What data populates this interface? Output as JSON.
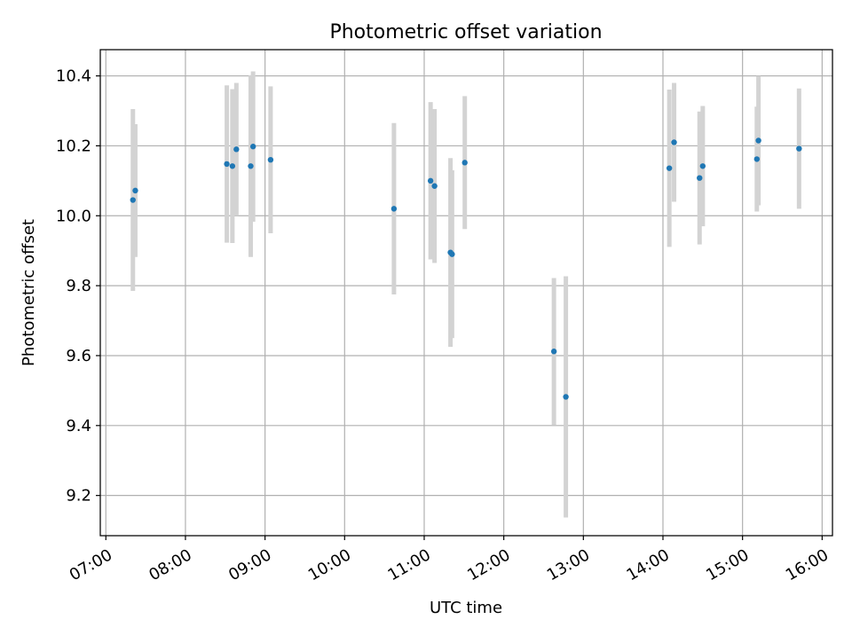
{
  "chart_data": {
    "type": "scatter",
    "title": "Photometric offset variation",
    "xlabel": "UTC time",
    "ylabel": "Photometric offset",
    "grid": true,
    "x_unit": "hours UTC",
    "xlim": [
      6.93,
      16.13
    ],
    "ylim": [
      9.085,
      10.475
    ],
    "x_ticks": [
      {
        "value": 7,
        "label": "07:00"
      },
      {
        "value": 8,
        "label": "08:00"
      },
      {
        "value": 9,
        "label": "09:00"
      },
      {
        "value": 10,
        "label": "10:00"
      },
      {
        "value": 11,
        "label": "11:00"
      },
      {
        "value": 12,
        "label": "12:00"
      },
      {
        "value": 13,
        "label": "13:00"
      },
      {
        "value": 14,
        "label": "14:00"
      },
      {
        "value": 15,
        "label": "15:00"
      },
      {
        "value": 16,
        "label": "16:00"
      }
    ],
    "y_ticks": [
      {
        "value": 9.2,
        "label": "9.2"
      },
      {
        "value": 9.4,
        "label": "9.4"
      },
      {
        "value": 9.6,
        "label": "9.6"
      },
      {
        "value": 9.8,
        "label": "9.8"
      },
      {
        "value": 10.0,
        "label": "10.0"
      },
      {
        "value": 10.2,
        "label": "10.2"
      },
      {
        "value": 10.4,
        "label": "10.4"
      }
    ],
    "colors": {
      "point": "#1f77b4",
      "errorbar": "#d3d3d3",
      "grid": "#b0b0b0",
      "axes": "#000000"
    },
    "series": [
      {
        "name": "photometric offset",
        "points": [
          {
            "x": 7.34,
            "y": 10.045,
            "err": 0.26
          },
          {
            "x": 7.37,
            "y": 10.072,
            "err": 0.19
          },
          {
            "x": 8.52,
            "y": 10.148,
            "err": 0.225
          },
          {
            "x": 8.59,
            "y": 10.142,
            "err": 0.22
          },
          {
            "x": 8.64,
            "y": 10.19,
            "err": 0.19
          },
          {
            "x": 8.82,
            "y": 10.142,
            "err": 0.26
          },
          {
            "x": 8.85,
            "y": 10.198,
            "err": 0.215
          },
          {
            "x": 9.07,
            "y": 10.16,
            "err": 0.21
          },
          {
            "x": 10.62,
            "y": 10.02,
            "err": 0.245
          },
          {
            "x": 11.08,
            "y": 10.1,
            "err": 0.225
          },
          {
            "x": 11.13,
            "y": 10.085,
            "err": 0.22
          },
          {
            "x": 11.33,
            "y": 9.895,
            "err": 0.27
          },
          {
            "x": 11.35,
            "y": 9.89,
            "err": 0.24
          },
          {
            "x": 11.51,
            "y": 10.152,
            "err": 0.19
          },
          {
            "x": 12.63,
            "y": 9.612,
            "err": 0.21
          },
          {
            "x": 12.78,
            "y": 9.482,
            "err": 0.345
          },
          {
            "x": 14.08,
            "y": 10.136,
            "err": 0.225
          },
          {
            "x": 14.14,
            "y": 10.21,
            "err": 0.17
          },
          {
            "x": 14.46,
            "y": 10.108,
            "err": 0.19
          },
          {
            "x": 14.5,
            "y": 10.142,
            "err": 0.172
          },
          {
            "x": 15.18,
            "y": 10.162,
            "err": 0.15
          },
          {
            "x": 15.2,
            "y": 10.215,
            "err": 0.185
          },
          {
            "x": 15.71,
            "y": 10.192,
            "err": 0.172
          }
        ]
      }
    ]
  }
}
